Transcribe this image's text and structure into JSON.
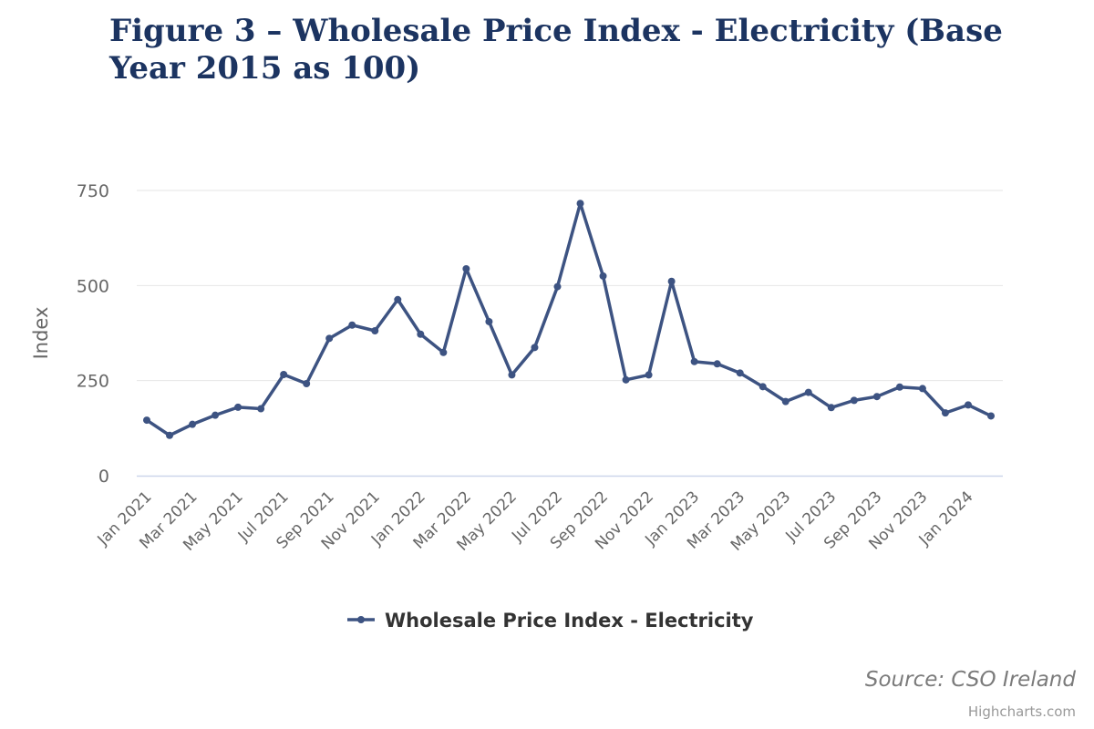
{
  "chart_data": {
    "type": "line",
    "title": "Figure 3 – Wholesale Price Index - Electricity (Base Year 2015 as 100)",
    "ylabel": "Index",
    "xlabel": "",
    "ylim": [
      0,
      750
    ],
    "yticks": [
      0,
      250,
      500,
      750
    ],
    "grid": true,
    "legend_position": "bottom-center",
    "x": [
      "Jan 2021",
      "Feb 2021",
      "Mar 2021",
      "Apr 2021",
      "May 2021",
      "Jun 2021",
      "Jul 2021",
      "Aug 2021",
      "Sep 2021",
      "Oct 2021",
      "Nov 2021",
      "Dec 2021",
      "Jan 2022",
      "Feb 2022",
      "Mar 2022",
      "Apr 2022",
      "May 2022",
      "Jun 2022",
      "Jul 2022",
      "Aug 2022",
      "Sep 2022",
      "Oct 2022",
      "Nov 2022",
      "Dec 2022",
      "Jan 2023",
      "Feb 2023",
      "Mar 2023",
      "Apr 2023",
      "May 2023",
      "Jun 2023",
      "Jul 2023",
      "Aug 2023",
      "Sep 2023",
      "Oct 2023",
      "Nov 2023",
      "Dec 2023",
      "Jan 2024",
      "Feb 2024"
    ],
    "x_tick_labels": [
      "Jan 2021",
      "Mar 2021",
      "May 2021",
      "Jul 2021",
      "Sep 2021",
      "Nov 2021",
      "Jan 2022",
      "Mar 2022",
      "May 2022",
      "Jul 2022",
      "Sep 2022",
      "Nov 2022",
      "Jan 2023",
      "Mar 2023",
      "May 2023",
      "Jul 2023",
      "Sep 2023",
      "Nov 2023",
      "Jan 2024"
    ],
    "series": [
      {
        "name": "Wholesale Price Index - Electricity",
        "color": "#3d5382",
        "values": [
          146,
          106,
          135,
          159,
          180,
          176,
          266,
          242,
          361,
          396,
          381,
          463,
          372,
          324,
          544,
          405,
          265,
          337,
          497,
          716,
          525,
          252,
          265,
          511,
          300,
          294,
          270,
          234,
          195,
          219,
          179,
          198,
          208,
          233,
          229,
          165,
          186,
          157
        ]
      }
    ],
    "source": "Source: CSO Ireland",
    "credits": "Highcharts.com"
  }
}
